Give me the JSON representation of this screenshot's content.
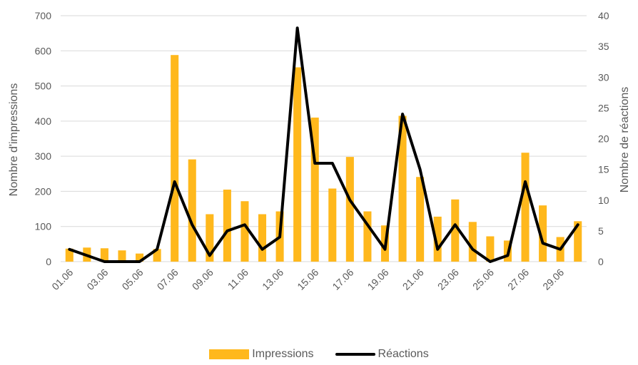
{
  "chart_data": {
    "type": "bar",
    "x": [
      "01.06",
      "02.06",
      "03.06",
      "04.06",
      "05.06",
      "06.06",
      "07.06",
      "08.06",
      "09.06",
      "10.06",
      "11.06",
      "12.06",
      "13.06",
      "14.06",
      "15.06",
      "16.06",
      "17.06",
      "18.06",
      "19.06",
      "20.06",
      "21.06",
      "22.06",
      "23.06",
      "24.06",
      "25.06",
      "26.06",
      "27.06",
      "28.06",
      "29.06",
      "30.06"
    ],
    "tick_labels": [
      "01.06",
      "03.06",
      "05.06",
      "07.06",
      "09.06",
      "11.06",
      "13.06",
      "15.06",
      "17.06",
      "19.06",
      "21.06",
      "23.06",
      "25.06",
      "27.06",
      "29.06"
    ],
    "series": [
      {
        "name": "Impressions",
        "type": "bar",
        "axis": "left",
        "color": "#FFB81C",
        "values": [
          37,
          40,
          38,
          32,
          23,
          36,
          588,
          291,
          135,
          205,
          172,
          135,
          143,
          553,
          410,
          208,
          298,
          143,
          103,
          415,
          241,
          128,
          177,
          113,
          72,
          60,
          310,
          160,
          70,
          115
        ]
      },
      {
        "name": "Réactions",
        "type": "line",
        "axis": "right",
        "color": "#000000",
        "values": [
          2,
          1,
          0,
          0,
          0,
          2,
          13,
          6,
          1,
          5,
          6,
          2,
          4,
          38,
          16,
          16,
          10,
          6,
          2,
          24,
          15,
          2,
          6,
          2,
          0,
          1,
          13,
          3,
          2,
          6
        ]
      }
    ],
    "ylabel": "Nombre d'impressions",
    "ylim": [
      0,
      700
    ],
    "yticks": [
      0,
      100,
      200,
      300,
      400,
      500,
      600,
      700
    ],
    "y2label": "Nombre de réactions",
    "y2lim": [
      0,
      40
    ],
    "y2ticks": [
      0,
      5,
      10,
      15,
      20,
      25,
      30,
      35,
      40
    ],
    "grid": true,
    "legend_position": "bottom"
  }
}
